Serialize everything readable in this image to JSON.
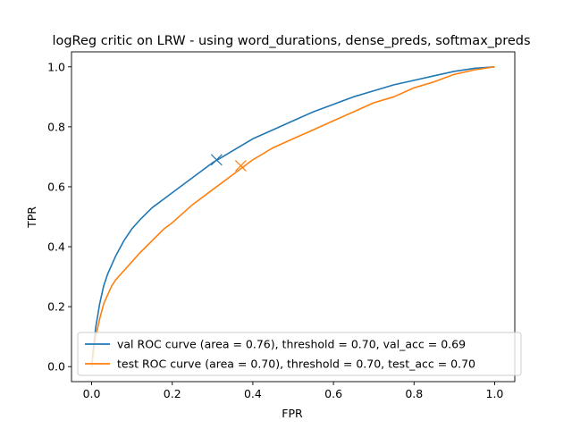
{
  "chart_data": {
    "type": "line",
    "title": "logReg critic on LRW - using word_durations, dense_preds, softmax_preds",
    "xlabel": "FPR",
    "ylabel": "TPR",
    "xlim": [
      -0.05,
      1.05
    ],
    "ylim": [
      -0.05,
      1.05
    ],
    "xticks": [
      "0.0",
      "0.2",
      "0.4",
      "0.6",
      "0.8",
      "1.0"
    ],
    "yticks": [
      "0.0",
      "0.2",
      "0.4",
      "0.6",
      "0.8",
      "1.0"
    ],
    "grid": false,
    "legend_position": "lower-right",
    "series": [
      {
        "name": "val ROC curve (area = 0.76), threshold = 0.70, val_acc = 0.69",
        "color": "#1f77b4",
        "x": [
          0.0,
          0.005,
          0.01,
          0.02,
          0.03,
          0.04,
          0.05,
          0.06,
          0.08,
          0.1,
          0.12,
          0.15,
          0.18,
          0.2,
          0.25,
          0.3,
          0.35,
          0.4,
          0.45,
          0.5,
          0.55,
          0.6,
          0.65,
          0.7,
          0.75,
          0.8,
          0.85,
          0.9,
          0.95,
          1.0
        ],
        "y": [
          0.0,
          0.07,
          0.13,
          0.21,
          0.27,
          0.31,
          0.34,
          0.37,
          0.42,
          0.46,
          0.49,
          0.53,
          0.56,
          0.58,
          0.63,
          0.68,
          0.72,
          0.76,
          0.79,
          0.82,
          0.85,
          0.875,
          0.9,
          0.92,
          0.94,
          0.955,
          0.97,
          0.985,
          0.995,
          1.0
        ],
        "marker": {
          "x": 0.31,
          "y": 0.69
        }
      },
      {
        "name": "test ROC curve (area = 0.70), threshold = 0.70, test_acc = 0.70",
        "color": "#ff7f0e",
        "x": [
          0.0,
          0.005,
          0.01,
          0.02,
          0.03,
          0.04,
          0.05,
          0.06,
          0.08,
          0.1,
          0.12,
          0.15,
          0.18,
          0.2,
          0.25,
          0.3,
          0.35,
          0.4,
          0.45,
          0.5,
          0.55,
          0.6,
          0.65,
          0.7,
          0.75,
          0.8,
          0.85,
          0.9,
          0.95,
          1.0
        ],
        "y": [
          0.0,
          0.05,
          0.1,
          0.16,
          0.21,
          0.24,
          0.27,
          0.29,
          0.32,
          0.35,
          0.38,
          0.42,
          0.46,
          0.48,
          0.54,
          0.59,
          0.64,
          0.69,
          0.73,
          0.76,
          0.79,
          0.82,
          0.85,
          0.88,
          0.9,
          0.93,
          0.95,
          0.975,
          0.99,
          1.0
        ],
        "marker": {
          "x": 0.37,
          "y": 0.67
        }
      }
    ]
  }
}
